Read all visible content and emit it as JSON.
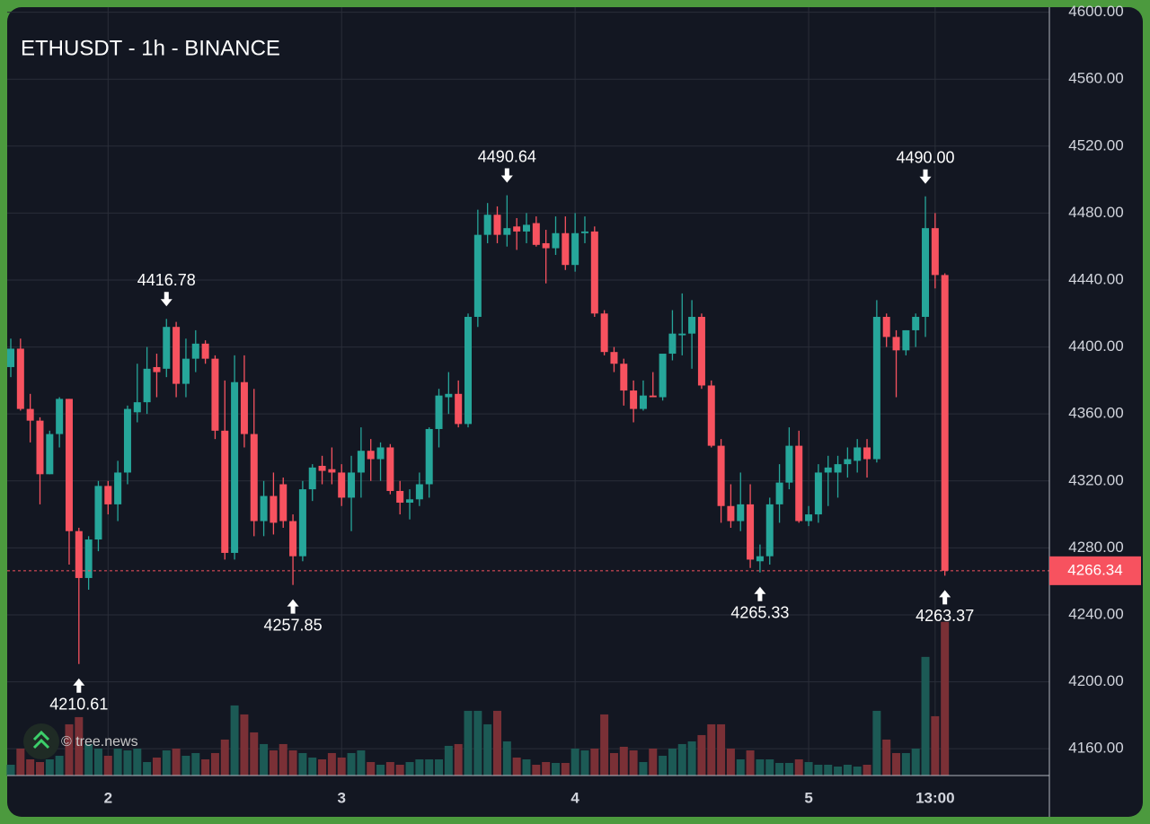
{
  "chart_data": {
    "type": "candlestick",
    "title": "ETHUSDT - 1h - BINANCE",
    "watermark": "© tree.news",
    "categories": [
      null,
      null,
      null,
      null,
      null,
      null,
      null,
      null,
      null,
      null,
      "2",
      null,
      null,
      null,
      null,
      null,
      null,
      null,
      null,
      null,
      null,
      null,
      null,
      null,
      null,
      null,
      null,
      null,
      null,
      null,
      null,
      null,
      null,
      null,
      "3",
      null,
      null,
      null,
      null,
      null,
      null,
      null,
      null,
      null,
      null,
      null,
      null,
      null,
      null,
      null,
      null,
      null,
      null,
      null,
      null,
      null,
      null,
      null,
      "4",
      null,
      null,
      null,
      null,
      null,
      null,
      null,
      null,
      null,
      null,
      null,
      null,
      null,
      null,
      null,
      null,
      null,
      null,
      null,
      null,
      null,
      null,
      null,
      "5",
      null,
      null,
      null,
      null,
      null,
      null,
      null,
      null,
      null,
      null,
      null,
      null,
      "13:00",
      null
    ],
    "open": [
      4388,
      4399,
      4363,
      4356,
      4324,
      4348,
      4369,
      4290,
      4262,
      4285,
      4317,
      4306,
      4325,
      4361,
      4367,
      4388,
      4387,
      4412,
      4378,
      4393,
      4402,
      4393,
      4350,
      4277,
      4379,
      4348,
      4296,
      4311,
      4318,
      4296,
      4275,
      4315,
      4329,
      4327,
      4325,
      4310,
      4325,
      4338,
      4333,
      4340,
      4314,
      4307,
      4309,
      4318,
      4351,
      4370,
      4372,
      4354,
      4418,
      4467,
      4479,
      4467,
      4472,
      4469,
      4474,
      4462,
      4459,
      4468,
      4449,
      4468,
      4469,
      4420,
      4397,
      4390,
      4374,
      4363,
      4371,
      4370,
      4396,
      4407,
      4408,
      4418,
      4377,
      4341,
      4305,
      4296,
      4306,
      4272,
      4275,
      4306,
      4319,
      4341,
      4296,
      4300,
      4325,
      4325,
      4330,
      4332,
      4340,
      4333,
      4418,
      4406,
      4398,
      4410,
      4418,
      4471,
      4443
    ],
    "high": [
      4405,
      4405,
      4372,
      4358,
      4350,
      4370,
      4369,
      4292,
      4287,
      4320,
      4320,
      4332,
      4365,
      4390,
      4400,
      4396,
      4416.78,
      4415,
      4405,
      4410,
      4404,
      4395,
      4380,
      4395,
      4395,
      4375,
      4320,
      4325,
      4322,
      4300,
      4320,
      4330,
      4335,
      4340,
      4330,
      4335,
      4352,
      4345,
      4343,
      4342,
      4320,
      4315,
      4325,
      4352,
      4375,
      4385,
      4380,
      4420,
      4482,
      4486,
      4484,
      4490.64,
      4477,
      4480,
      4478,
      4470,
      4478,
      4478,
      4480,
      4478,
      4472,
      4422,
      4400,
      4393,
      4380,
      4380,
      4385,
      4395,
      4422,
      4432,
      4428,
      4420,
      4380,
      4345,
      4318,
      4325,
      4318,
      4282,
      4310,
      4330,
      4352,
      4350,
      4305,
      4330,
      4335,
      4335,
      4340,
      4345,
      4345,
      4428,
      4420,
      4410,
      4410,
      4420,
      4490,
      4480,
      4444
    ],
    "low": [
      4382,
      4362,
      4343,
      4306,
      4324,
      4340,
      4270,
      4210.61,
      4255,
      4278,
      4300,
      4296,
      4318,
      4355,
      4360,
      4370,
      4382,
      4370,
      4370,
      4385,
      4390,
      4345,
      4273,
      4273,
      4340,
      4287,
      4287,
      4288,
      4292,
      4257.85,
      4272,
      4308,
      4318,
      4318,
      4305,
      4290,
      4310,
      4320,
      4320,
      4312,
      4300,
      4297,
      4305,
      4310,
      4340,
      4360,
      4352,
      4352,
      4412,
      4462,
      4462,
      4460,
      4458,
      4462,
      4460,
      4438,
      4455,
      4446,
      4445,
      4462,
      4418,
      4395,
      4385,
      4365,
      4355,
      4362,
      4370,
      4368,
      4392,
      4395,
      4387,
      4375,
      4340,
      4295,
      4292,
      4290,
      4268,
      4265.33,
      4270,
      4295,
      4315,
      4295,
      4293,
      4295,
      4305,
      4310,
      4322,
      4325,
      4322,
      4331,
      4400,
      4370,
      4395,
      4400,
      4406,
      4435,
      4263.37
    ],
    "close": [
      4399,
      4363,
      4356,
      4324,
      4348,
      4369,
      4290,
      4262,
      4285,
      4317,
      4306,
      4325,
      4363,
      4367,
      4387,
      4385,
      4412,
      4378,
      4393,
      4402,
      4393,
      4350,
      4277,
      4379,
      4348,
      4296,
      4311,
      4295,
      4296,
      4275,
      4315,
      4328,
      4326,
      4325,
      4310,
      4325,
      4338,
      4333,
      4340,
      4314,
      4307,
      4309,
      4318,
      4351,
      4371,
      4372,
      4354,
      4418,
      4467,
      4479,
      4467,
      4471,
      4469,
      4473,
      4461,
      4459,
      4468,
      4449,
      4468,
      4469,
      4420,
      4397,
      4390,
      4374,
      4363,
      4371,
      4370,
      4396,
      4408,
      4408,
      4418,
      4377,
      4341,
      4305,
      4296,
      4306,
      4273,
      4275,
      4306,
      4319,
      4341,
      4296,
      4300,
      4325,
      4328,
      4330,
      4333,
      4340,
      4333,
      4418,
      4406,
      4398,
      4410,
      4418,
      4471,
      4443,
      4266.34
    ],
    "volume": [
      12,
      30,
      18,
      15,
      18,
      22,
      57,
      65,
      35,
      30,
      22,
      30,
      28,
      30,
      15,
      20,
      28,
      30,
      22,
      25,
      18,
      25,
      40,
      78,
      68,
      48,
      35,
      28,
      35,
      28,
      25,
      20,
      18,
      25,
      20,
      25,
      28,
      15,
      12,
      15,
      12,
      15,
      18,
      18,
      18,
      33,
      35,
      72,
      72,
      57,
      72,
      38,
      20,
      18,
      12,
      15,
      14,
      14,
      30,
      28,
      30,
      68,
      25,
      32,
      28,
      15,
      30,
      22,
      30,
      35,
      38,
      45,
      57,
      57,
      30,
      18,
      28,
      18,
      18,
      14,
      14,
      18,
      15,
      12,
      12,
      10,
      12,
      10,
      12,
      72,
      40,
      25,
      25,
      30,
      132,
      66,
      171
    ],
    "volume_lim": [
      0,
      855
    ],
    "ylim": [
      4144,
      4603
    ],
    "yticks": [
      {
        "value": 4160,
        "label": "4160.00"
      },
      {
        "value": 4200,
        "label": "4200.00"
      },
      {
        "value": 4240,
        "label": "4240.00"
      },
      {
        "value": 4280,
        "label": "4280.00"
      },
      {
        "value": 4320,
        "label": "4320.00"
      },
      {
        "value": 4360,
        "label": "4360.00"
      },
      {
        "value": 4400,
        "label": "4400.00"
      },
      {
        "value": 4440,
        "label": "4440.00"
      },
      {
        "value": 4480,
        "label": "4480.00"
      },
      {
        "value": 4520,
        "label": "4520.00"
      },
      {
        "value": 4560,
        "label": "4560.00"
      },
      {
        "value": 4600,
        "label": "4600.00"
      }
    ],
    "annotations": [
      {
        "index": 7,
        "side": "low",
        "label": "4210.61"
      },
      {
        "index": 16,
        "side": "high",
        "label": "4416.78"
      },
      {
        "index": 29,
        "side": "low",
        "label": "4257.85"
      },
      {
        "index": 51,
        "side": "high",
        "label": "4490.64"
      },
      {
        "index": 77,
        "side": "low",
        "label": "4265.33"
      },
      {
        "index": 94,
        "side": "high",
        "label": "4490.00"
      },
      {
        "index": 96,
        "side": "low",
        "label": "4263.37"
      }
    ],
    "up_color": "#26a69a",
    "down_color": "#f7525f",
    "grid": true
  }
}
